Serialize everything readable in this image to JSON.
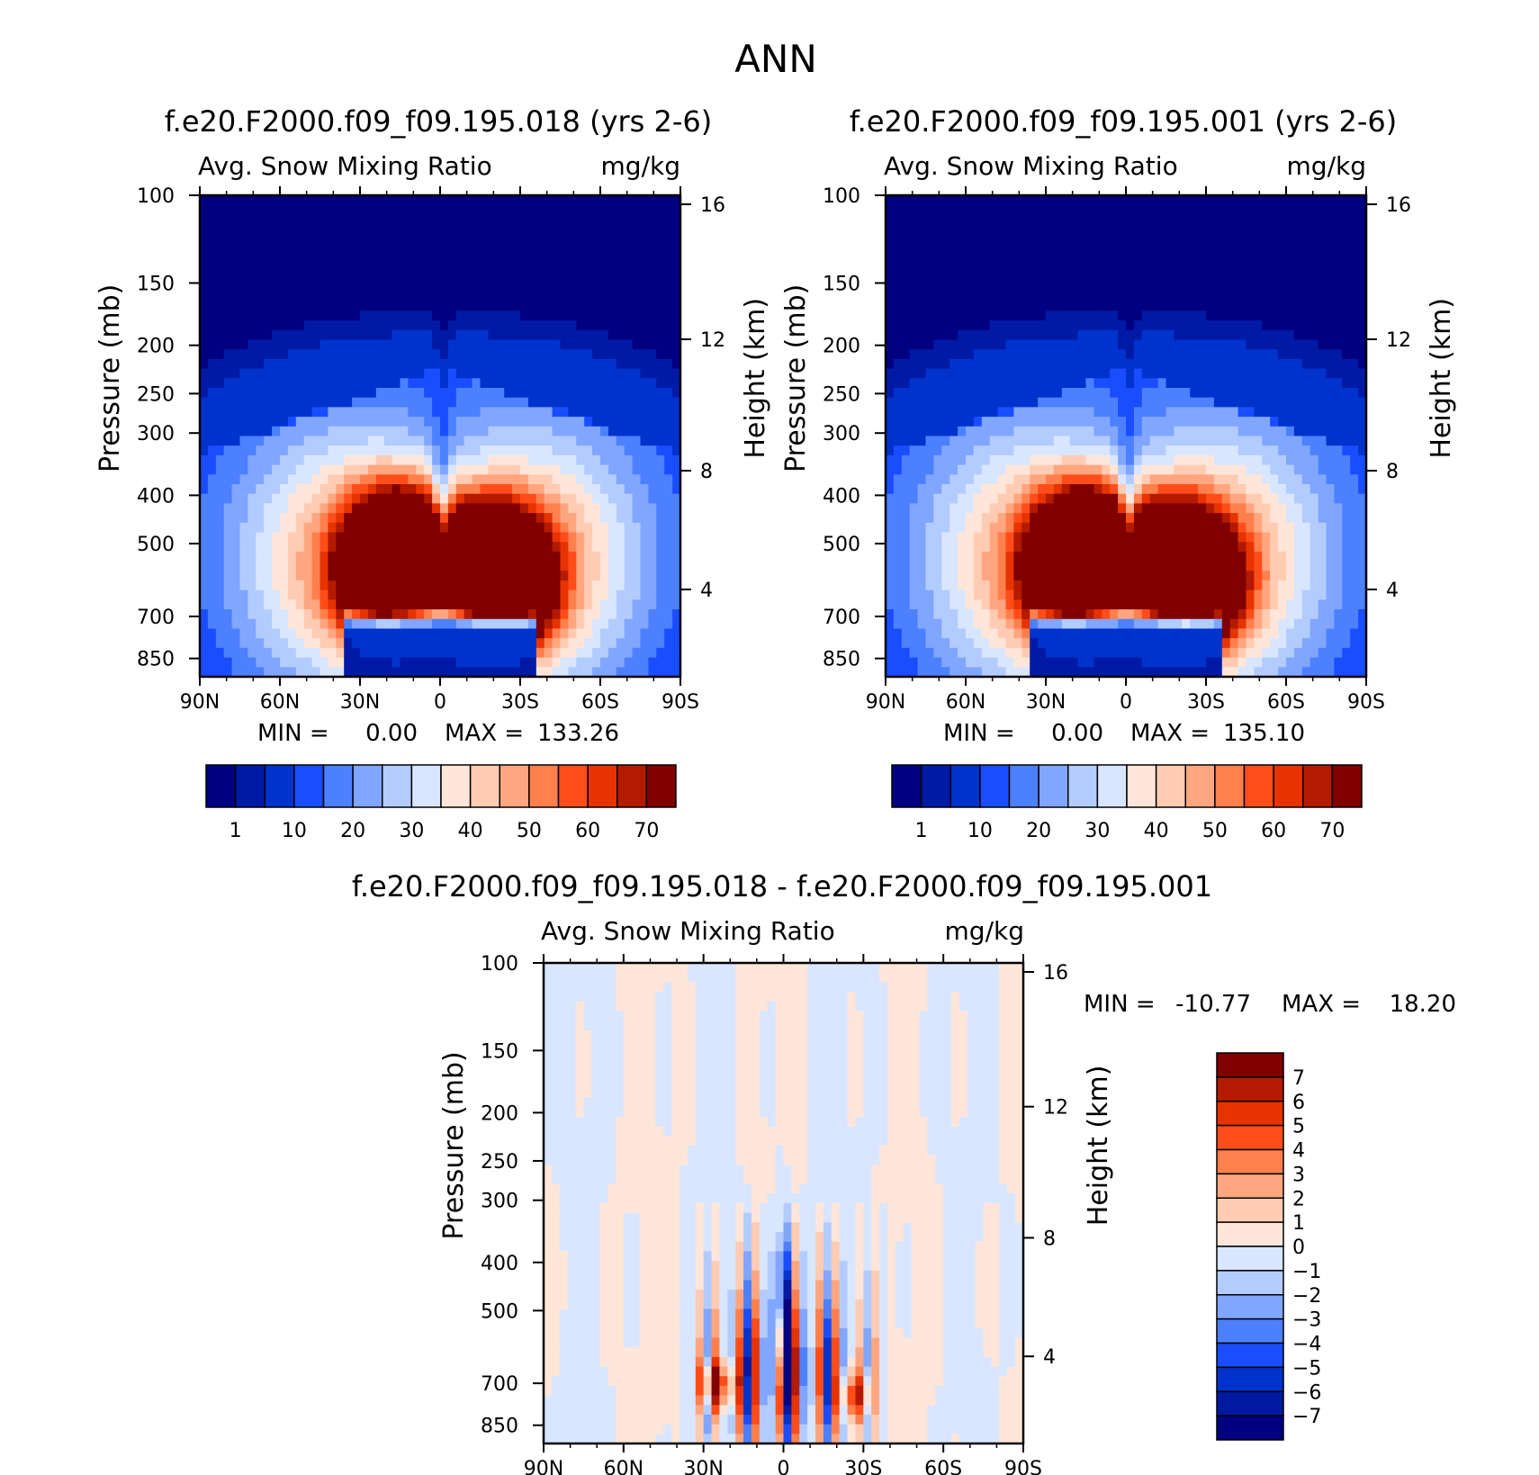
{
  "page": {
    "title": "ANN"
  },
  "colors": {
    "abs_scale": [
      "#000080",
      "#001aa6",
      "#0033cc",
      "#1a4dff",
      "#4d80ff",
      "#80a6ff",
      "#b3ccff",
      "#d9e6ff",
      "#ffe6d9",
      "#ffccb3",
      "#ffa680",
      "#ff804d",
      "#ff4d1a",
      "#e63300",
      "#b31a00",
      "#800000"
    ],
    "diff_scale": [
      "#000080",
      "#0019a1",
      "#0033cc",
      "#1a4dff",
      "#4d80ff",
      "#80a6ff",
      "#b3ccff",
      "#d9e6ff",
      "#ffe6d9",
      "#ffccb3",
      "#ffa680",
      "#ff804d",
      "#ff4d1a",
      "#e63300",
      "#b31a00",
      "#800000"
    ]
  },
  "chart_data": [
    {
      "type": "heatmap",
      "id": "panel-1",
      "title": "f.e20.F2000.f09_f09.195.018 (yrs 2-6)",
      "left_label": "Avg. Snow Mixing Ratio",
      "right_label": "mg/kg",
      "ylabel": "Pressure (mb)",
      "y2label": "Height (km)",
      "x_ticks": [
        "90N",
        "60N",
        "30N",
        "0",
        "30S",
        "60S",
        "90S"
      ],
      "y_ticks": [
        100,
        150,
        200,
        250,
        300,
        400,
        500,
        700,
        850
      ],
      "y2_ticks": [
        16,
        12,
        8,
        4
      ],
      "ylim": [
        100,
        925
      ],
      "xlim": [
        90,
        -90
      ],
      "min_label": "MIN =",
      "min_value": "0.00",
      "max_label": "MAX =",
      "max_value": "133.26",
      "colorbar_labels": [
        "1",
        "10",
        "20",
        "30",
        "40",
        "50",
        "60",
        "70"
      ],
      "contour_levels": [
        0.5,
        1,
        5,
        10,
        15,
        20,
        25,
        30,
        35,
        40,
        45,
        50,
        55,
        60,
        65,
        70
      ],
      "field_max": 133.26
    },
    {
      "type": "heatmap",
      "id": "panel-2",
      "title": "f.e20.F2000.f09_f09.195.001 (yrs 2-6)",
      "left_label": "Avg. Snow Mixing Ratio",
      "right_label": "mg/kg",
      "ylabel": "Pressure (mb)",
      "y2label": "Height (km)",
      "x_ticks": [
        "90N",
        "60N",
        "30N",
        "0",
        "30S",
        "60S",
        "90S"
      ],
      "y_ticks": [
        100,
        150,
        200,
        250,
        300,
        400,
        500,
        700,
        850
      ],
      "y2_ticks": [
        16,
        12,
        8,
        4
      ],
      "ylim": [
        100,
        925
      ],
      "xlim": [
        90,
        -90
      ],
      "min_label": "MIN =",
      "min_value": "0.00",
      "max_label": "MAX =",
      "max_value": "135.10",
      "colorbar_labels": [
        "1",
        "10",
        "20",
        "30",
        "40",
        "50",
        "60",
        "70"
      ],
      "contour_levels": [
        0.5,
        1,
        5,
        10,
        15,
        20,
        25,
        30,
        35,
        40,
        45,
        50,
        55,
        60,
        65,
        70
      ],
      "field_max": 135.1
    },
    {
      "type": "heatmap",
      "id": "panel-diff",
      "title": "f.e20.F2000.f09_f09.195.018 - f.e20.F2000.f09_f09.195.001",
      "left_label": "Avg. Snow Mixing Ratio",
      "right_label": "mg/kg",
      "ylabel": "Pressure (mb)",
      "y2label": "Height (km)",
      "x_ticks": [
        "90N",
        "60N",
        "30N",
        "0",
        "30S",
        "60S",
        "90S"
      ],
      "y_ticks": [
        100,
        150,
        200,
        250,
        300,
        400,
        500,
        700,
        850
      ],
      "y2_ticks": [
        16,
        12,
        8,
        4
      ],
      "ylim": [
        100,
        925
      ],
      "xlim": [
        90,
        -90
      ],
      "min_label": "MIN =",
      "min_value": "-10.77",
      "max_label": "MAX =",
      "max_value": "18.20",
      "colorbar_labels": [
        "7",
        "6",
        "5",
        "4",
        "3",
        "2",
        "1",
        "0",
        "-1",
        "-2",
        "-3",
        "-4",
        "-5",
        "-6",
        "-7"
      ],
      "contour_levels": [
        -7,
        -6,
        -5,
        -4,
        -3,
        -2,
        -1,
        0,
        1,
        2,
        3,
        4,
        5,
        6,
        7
      ]
    }
  ]
}
